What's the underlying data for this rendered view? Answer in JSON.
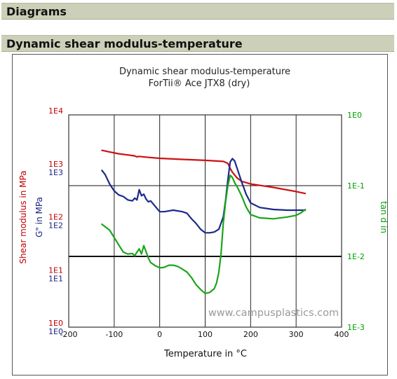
{
  "page": {
    "section_diagrams": "Diagrams",
    "section_chart": "Dynamic shear modulus-temperature"
  },
  "colors": {
    "section_bar": "#cdd0b8",
    "red_axis": "#c00000",
    "blue_axis": "#1a237e",
    "green_axis": "#00a000",
    "red_series": "#cc1111",
    "blue_series": "#1c2a8a",
    "green_series": "#1aa61a"
  },
  "chart_data": {
    "type": "line",
    "title": "Dynamic shear modulus-temperature",
    "subtitle": "ForTii® Ace JTX8 (dry)",
    "xlabel": "Temperature in °C",
    "ylabel_left_outer": "Shear modulus in MPa",
    "ylabel_left_inner": "G\" in MPa",
    "ylabel_right": "tan d in",
    "watermark": "www.campusplastics.com",
    "grid": true,
    "xlim": [
      -200,
      400
    ],
    "x_ticks": [
      "-200",
      "-100",
      "0",
      "100",
      "200",
      "300",
      "400"
    ],
    "y_left_outer": {
      "scale": "log",
      "ylim": [
        1,
        10000
      ],
      "ticks": [
        "1E0",
        "1E1",
        "1E2",
        "1E3",
        "1E4"
      ]
    },
    "y_left_inner": {
      "scale": "log",
      "ylim": [
        0.1,
        1000
      ],
      "ticks": [
        "1E0",
        "1E1",
        "1E2",
        "1E3"
      ]
    },
    "y_right": {
      "scale": "log",
      "ylim": [
        0.001,
        1
      ],
      "ticks": [
        "1E-3",
        "1E-2",
        "1E-1",
        "1E0"
      ]
    },
    "series": [
      {
        "axis": "left_outer",
        "color": "#cc1111",
        "x": [
          -127,
          -110,
          -90,
          -70,
          -55,
          -50,
          -45,
          -30,
          0,
          50,
          100,
          140,
          150,
          155,
          160,
          170,
          180,
          200,
          250,
          300,
          320
        ],
        "y": [
          2150,
          2000,
          1850,
          1760,
          1690,
          1620,
          1650,
          1600,
          1520,
          1450,
          1390,
          1330,
          1220,
          980,
          830,
          650,
          560,
          500,
          430,
          360,
          330
        ]
      },
      {
        "axis": "left_inner",
        "color": "#1c2a8a",
        "x": [
          -127,
          -120,
          -110,
          -100,
          -90,
          -80,
          -70,
          -60,
          -55,
          -50,
          -45,
          -40,
          -35,
          -30,
          -25,
          -20,
          -10,
          0,
          10,
          30,
          50,
          60,
          70,
          80,
          90,
          100,
          110,
          120,
          130,
          140,
          145,
          150,
          155,
          160,
          165,
          170,
          180,
          190,
          200,
          220,
          250,
          280,
          300,
          320
        ],
        "y": [
          90,
          75,
          50,
          37,
          31,
          29,
          25,
          24,
          27,
          25,
          39,
          30,
          32,
          26,
          23,
          24,
          19,
          15,
          15,
          16,
          15,
          14,
          11,
          9,
          7,
          6,
          6,
          6.2,
          7,
          12,
          25,
          60,
          130,
          150,
          135,
          100,
          55,
          32,
          22,
          18,
          16.5,
          16,
          16,
          16
        ]
      },
      {
        "axis": "right",
        "color": "#1aa61a",
        "x": [
          -127,
          -110,
          -100,
          -90,
          -80,
          -70,
          -60,
          -55,
          -50,
          -45,
          -40,
          -35,
          -30,
          -25,
          -20,
          -10,
          0,
          10,
          20,
          30,
          40,
          50,
          60,
          70,
          80,
          90,
          100,
          110,
          120,
          125,
          130,
          135,
          140,
          145,
          150,
          155,
          160,
          165,
          170,
          180,
          190,
          200,
          220,
          250,
          280,
          300,
          310,
          320
        ],
        "y": [
          0.0285,
          0.0235,
          0.0185,
          0.0145,
          0.0115,
          0.0108,
          0.011,
          0.0102,
          0.0115,
          0.0128,
          0.0108,
          0.0142,
          0.0117,
          0.0095,
          0.0082,
          0.0074,
          0.0069,
          0.007,
          0.0075,
          0.0075,
          0.0072,
          0.0066,
          0.006,
          0.005,
          0.004,
          0.0034,
          0.003,
          0.0031,
          0.0035,
          0.0042,
          0.006,
          0.011,
          0.03,
          0.06,
          0.1,
          0.14,
          0.13,
          0.11,
          0.097,
          0.072,
          0.05,
          0.039,
          0.035,
          0.034,
          0.036,
          0.038,
          0.041,
          0.046
        ]
      }
    ]
  }
}
